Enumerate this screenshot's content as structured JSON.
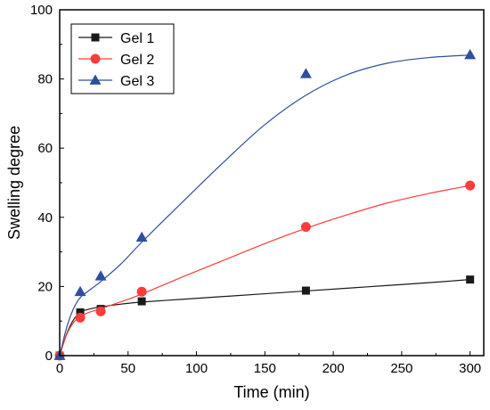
{
  "chart_data": {
    "type": "line",
    "title": "",
    "xlabel": "Time (min)",
    "ylabel": "Swelling degree",
    "xlim": [
      0,
      310
    ],
    "ylim": [
      0,
      100
    ],
    "x_ticks": [
      0,
      50,
      100,
      150,
      200,
      250,
      300
    ],
    "y_ticks": [
      0,
      20,
      40,
      60,
      80,
      100
    ],
    "grid": false,
    "legend_position": "top-left",
    "series": [
      {
        "name": "Gel 1",
        "marker": "square",
        "color": "#1a1a1a",
        "x": [
          0,
          15,
          30,
          60,
          180,
          300
        ],
        "y": [
          0,
          12.5,
          13.5,
          15.7,
          18.8,
          22.0
        ],
        "curve": [
          [
            0,
            0
          ],
          [
            5,
            6.2
          ],
          [
            10,
            10.3
          ],
          [
            15,
            12.5
          ],
          [
            20,
            13.3
          ],
          [
            30,
            14.1
          ],
          [
            45,
            14.9
          ],
          [
            60,
            15.5
          ],
          [
            90,
            16.3
          ],
          [
            120,
            17.1
          ],
          [
            150,
            17.9
          ],
          [
            180,
            18.7
          ],
          [
            210,
            19.5
          ],
          [
            240,
            20.3
          ],
          [
            270,
            21.1
          ],
          [
            300,
            22.0
          ]
        ]
      },
      {
        "name": "Gel 2",
        "marker": "circle",
        "color": "#ff3b3b",
        "x": [
          0,
          15,
          30,
          60,
          180,
          300
        ],
        "y": [
          0,
          11.0,
          12.8,
          18.5,
          37.2,
          49.2
        ],
        "curve": [
          [
            0,
            0
          ],
          [
            5,
            6.0
          ],
          [
            10,
            9.5
          ],
          [
            15,
            11.2
          ],
          [
            20,
            12.3
          ],
          [
            30,
            13.6
          ],
          [
            45,
            15.6
          ],
          [
            60,
            17.8
          ],
          [
            90,
            22.8
          ],
          [
            120,
            27.6
          ],
          [
            150,
            32.4
          ],
          [
            180,
            36.8
          ],
          [
            210,
            40.7
          ],
          [
            240,
            44.2
          ],
          [
            270,
            46.9
          ],
          [
            300,
            49.2
          ]
        ]
      },
      {
        "name": "Gel 3",
        "marker": "triangle",
        "color": "#2e4f9c",
        "x": [
          0,
          15,
          30,
          60,
          180,
          300
        ],
        "y": [
          0,
          18.5,
          23.0,
          34.2,
          81.5,
          87.0
        ],
        "curve": [
          [
            0,
            0
          ],
          [
            5,
            8.0
          ],
          [
            10,
            13.5
          ],
          [
            15,
            16.8
          ],
          [
            20,
            18.4
          ],
          [
            30,
            21.4
          ],
          [
            45,
            26.6
          ],
          [
            60,
            32.8
          ],
          [
            90,
            44.5
          ],
          [
            120,
            56.0
          ],
          [
            150,
            66.8
          ],
          [
            180,
            75.3
          ],
          [
            210,
            81.2
          ],
          [
            240,
            84.6
          ],
          [
            270,
            86.2
          ],
          [
            300,
            86.9
          ]
        ]
      }
    ]
  }
}
